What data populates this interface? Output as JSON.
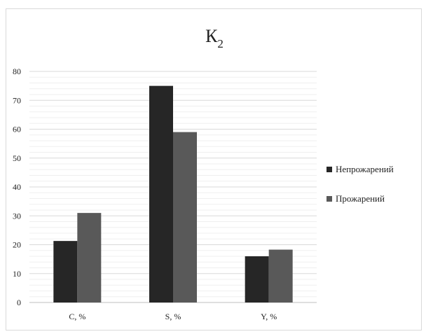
{
  "chart_data": {
    "type": "bar",
    "title": "К",
    "title_subscript": "2",
    "categories": [
      "C, %",
      "S, %",
      "Y, %"
    ],
    "series": [
      {
        "name": "Непрожарений",
        "values": [
          21.3,
          75.0,
          16.0
        ],
        "color": "#262626"
      },
      {
        "name": "Прожарений",
        "values": [
          31.0,
          59.0,
          18.3
        ],
        "color": "#595959"
      }
    ],
    "ylim": [
      0,
      80
    ],
    "yticks": [
      "0",
      "10",
      "20",
      "30",
      "40",
      "50",
      "60",
      "70",
      "80"
    ],
    "grid": true,
    "legend_position": "right"
  }
}
